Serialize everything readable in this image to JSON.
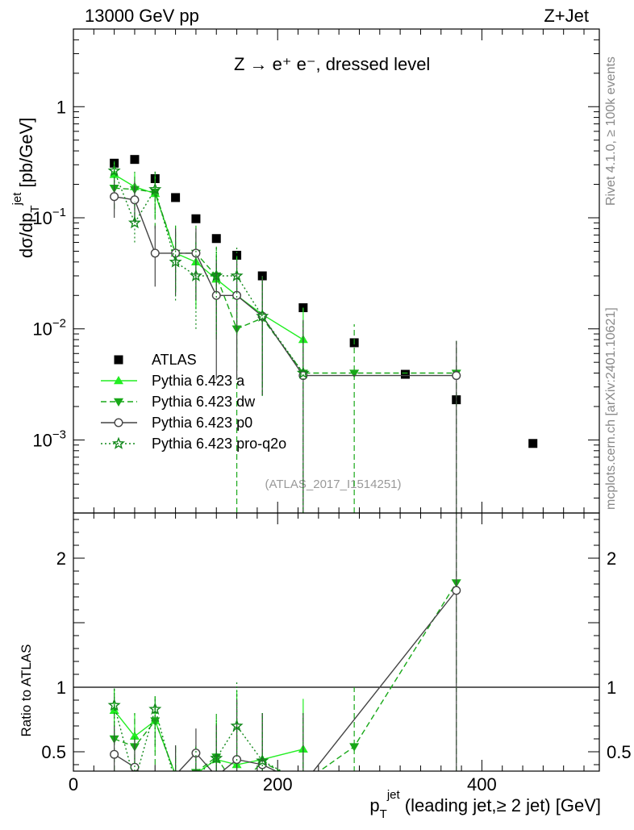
{
  "header": {
    "left_title": "13000 GeV pp",
    "right_title": "Z+Jet",
    "process_label": "Z → e⁺ e⁻, dressed level",
    "analysis_ref": "(ATLAS_2017_I1514251)",
    "side_top": "Rivet 4.1.0, ≥ 100k events",
    "side_bottom": "mcplots.cern.ch [arXiv:2401.10621]"
  },
  "chart_data": [
    {
      "type": "scatter",
      "panel": "main",
      "ylabel_main": "dσ/dp",
      "ylabel_sub": "T",
      "ylabel_sup": "jet",
      "ylabel_unit": " [pb/GeV]",
      "yscale": "log",
      "ylim": [
        0.00022,
        5
      ],
      "xlim": [
        0,
        515
      ],
      "yticks": [
        {
          "value": 1,
          "label": "1",
          "exp": ""
        },
        {
          "value": 0.1,
          "label": "10",
          "exp": "−1"
        },
        {
          "value": 0.01,
          "label": "10",
          "exp": "−2"
        },
        {
          "value": 0.001,
          "label": "10",
          "exp": "−3"
        }
      ],
      "series": [
        {
          "name": "ATLAS",
          "color": "#000000",
          "marker": "square",
          "line": "none",
          "x": [
            40,
            60,
            80,
            100,
            120,
            140,
            160,
            185,
            225,
            275,
            325,
            375,
            450
          ],
          "y": [
            0.31,
            0.335,
            0.225,
            0.152,
            0.098,
            0.065,
            0.046,
            0.03,
            0.0155,
            0.0075,
            0.0039,
            0.0023,
            0.00093
          ]
        },
        {
          "name": "Pythia 6.423 a",
          "color": "#22ee22",
          "marker": "triangle-up",
          "line": "solid",
          "x": [
            40,
            60,
            80,
            100,
            120,
            140,
            160,
            185,
            225
          ],
          "y": [
            0.245,
            0.19,
            0.165,
            0.048,
            0.04,
            0.028,
            0.02,
            0.0135,
            0.008
          ],
          "err_lo": [
            0.18,
            0.13,
            0.1,
            0.022,
            0.015,
            0.009,
            0.0045,
            0.003,
            0.004
          ],
          "err_hi": [
            0.32,
            0.25,
            0.24,
            0.085,
            0.075,
            0.05,
            0.045,
            0.03,
            0.0155
          ]
        },
        {
          "name": "Pythia 6.423 dw",
          "color": "#18a818",
          "marker": "triangle-down",
          "line": "dashed",
          "x": [
            40,
            60,
            80,
            100,
            120,
            140,
            160,
            185,
            225,
            275,
            375
          ],
          "y": [
            0.185,
            0.18,
            0.17,
            0.048,
            0.048,
            0.03,
            0.01,
            0.0125,
            0.004,
            0.004,
            0.004
          ],
          "err_lo": [
            0.12,
            0.1,
            0.08,
            0.022,
            0.018,
            0.008,
            0.00022,
            0.0025,
            0.00022,
            0.00022,
            0.00022
          ],
          "err_hi": [
            0.26,
            0.26,
            0.26,
            0.085,
            0.085,
            0.055,
            0.03,
            0.03,
            0.012,
            0.011,
            0.0078
          ]
        },
        {
          "name": "Pythia 6.423 p0",
          "color": "#444444",
          "marker": "circle-open",
          "line": "solid",
          "x": [
            40,
            60,
            80,
            100,
            120,
            140,
            160,
            185,
            225,
            375
          ],
          "y": [
            0.155,
            0.145,
            0.048,
            0.048,
            0.048,
            0.02,
            0.02,
            0.013,
            0.0038,
            0.0038
          ],
          "err_lo": [
            0.1,
            0.09,
            0.024,
            0.02,
            0.018,
            0.0035,
            0.0035,
            0.0025,
            0.00022,
            0.00022
          ],
          "err_hi": [
            0.22,
            0.21,
            0.085,
            0.08,
            0.08,
            0.042,
            0.042,
            0.03,
            0.012,
            0.0078
          ]
        },
        {
          "name": "Pythia 6.423 pro-q2o",
          "color": "#11881a",
          "marker": "star",
          "line": "dotted",
          "x": [
            40,
            60,
            80,
            100,
            120,
            140,
            160,
            185,
            225
          ],
          "y": [
            0.265,
            0.09,
            0.18,
            0.04,
            0.03,
            0.03,
            0.03,
            0.013,
            0.004
          ],
          "err_lo": [
            0.19,
            0.06,
            0.11,
            0.018,
            0.01,
            0.009,
            0.009,
            0.0025,
            0.00022
          ],
          "err_hi": [
            0.34,
            0.14,
            0.26,
            0.07,
            0.06,
            0.055,
            0.055,
            0.03,
            0.012
          ]
        }
      ]
    },
    {
      "type": "line",
      "panel": "ratio",
      "ylabel": "Ratio to ATLAS",
      "xlabel_main": "p",
      "xlabel_sub": "T",
      "xlabel_sup": "jet",
      "xlabel_rest": " (leading jet,≥ 2 jet) [GeV]",
      "ylim": [
        0.35,
        2.35
      ],
      "xlim": [
        0,
        515
      ],
      "yticks": [
        0.5,
        1,
        2
      ],
      "ytick_labels": [
        "0.5",
        "1",
        "2"
      ],
      "xticks": [
        0,
        200,
        400
      ],
      "xtick_labels": [
        "0",
        "200",
        "400"
      ],
      "reference": 1,
      "series": [
        {
          "name": "Pythia 6.423 a",
          "color": "#22ee22",
          "marker": "triangle-up",
          "line": "solid",
          "x": [
            40,
            60,
            80,
            100,
            120,
            140,
            160,
            185,
            225
          ],
          "y": [
            0.82,
            0.62,
            0.74,
            0.32,
            0.33,
            0.44,
            0.4,
            0.44,
            0.52
          ],
          "err_lo": [
            0.55,
            0.38,
            0.5,
            0.15,
            0.15,
            0.2,
            0.22,
            0.2,
            0.25
          ],
          "err_hi": [
            0.99,
            0.8,
            0.93,
            0.55,
            0.55,
            0.75,
            0.98,
            0.8,
            0.91
          ]
        },
        {
          "name": "Pythia 6.423 dw",
          "color": "#18a818",
          "marker": "triangle-down",
          "line": "dashed",
          "x": [
            40,
            60,
            80,
            100,
            120,
            140,
            160,
            185,
            225,
            275,
            375
          ],
          "y": [
            0.6,
            0.54,
            0.74,
            0.32,
            0.34,
            0.46,
            0.22,
            0.42,
            0.26,
            0.54,
            1.81
          ],
          "err_lo": [
            0.35,
            0.3,
            0.4,
            0.15,
            0.15,
            0.2,
            0.1,
            0.2,
            0.1,
            0.0,
            0.0
          ],
          "err_hi": [
            0.99,
            0.8,
            0.93,
            0.55,
            0.55,
            0.8,
            0.95,
            0.8,
            0.8,
            1.0,
            3.0
          ]
        },
        {
          "name": "Pythia 6.423 p0",
          "color": "#444444",
          "marker": "circle-open",
          "line": "solid",
          "x": [
            40,
            60,
            80,
            100,
            120,
            140,
            160,
            185,
            225,
            375
          ],
          "y": [
            0.48,
            0.38,
            0.22,
            0.32,
            0.49,
            0.31,
            0.44,
            0.4,
            0.25,
            1.75
          ],
          "err_lo": [
            0.3,
            0.2,
            0.1,
            0.15,
            0.3,
            0.1,
            0.25,
            0.2,
            0.0,
            0.0
          ],
          "err_hi": [
            0.7,
            0.6,
            0.4,
            0.55,
            0.68,
            0.7,
            0.9,
            0.8,
            0.8,
            3.0
          ]
        },
        {
          "name": "Pythia 6.423 pro-q2o",
          "color": "#11881a",
          "marker": "star",
          "line": "dotted",
          "x": [
            40,
            60,
            80,
            100,
            120,
            140,
            160,
            185,
            225
          ],
          "y": [
            0.86,
            0.27,
            0.83,
            0.26,
            0.31,
            0.45,
            0.7,
            0.43,
            0.26
          ],
          "err_lo": [
            0.6,
            0.1,
            0.55,
            0.1,
            0.15,
            0.2,
            0.4,
            0.2,
            0.0
          ],
          "err_hi": [
            0.99,
            0.45,
            0.93,
            0.45,
            0.55,
            0.75,
            1.04,
            0.8,
            0.8
          ]
        }
      ]
    }
  ]
}
